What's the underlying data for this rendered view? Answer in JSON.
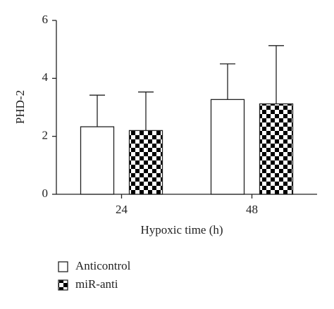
{
  "chart_data": {
    "type": "bar",
    "y_label": "PHD-2",
    "x_label": "Hypoxic time (h)",
    "categories": [
      "24",
      "48"
    ],
    "series": [
      {
        "name": "Anticontrol",
        "color": "#ffffff",
        "values": [
          2.33,
          3.27
        ],
        "errors": [
          1.09,
          1.23
        ]
      },
      {
        "name": "miR-anti",
        "color": "#000000",
        "pattern": "checker",
        "values": [
          2.2,
          3.12
        ],
        "errors": [
          1.33,
          2.01
        ]
      }
    ],
    "ylim": [
      0,
      6
    ],
    "yticks": [
      0,
      2,
      4,
      6
    ],
    "legend": "bottom-left"
  }
}
